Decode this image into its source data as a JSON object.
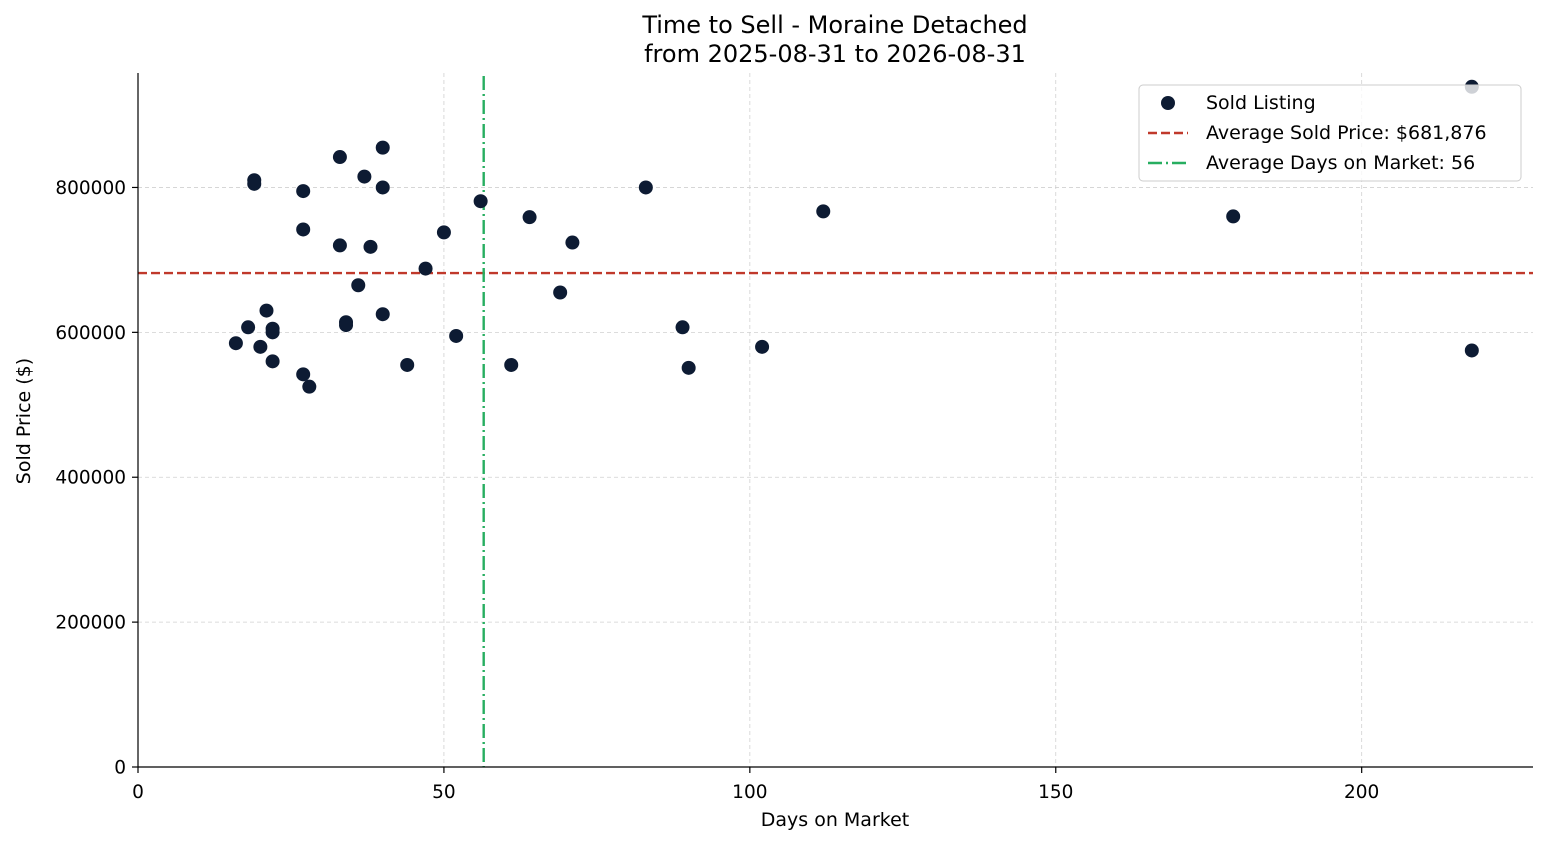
{
  "chart_data": {
    "type": "scatter",
    "title": "Time to Sell - Moraine Detached",
    "subtitle": "from 2025-08-31 to 2026-08-31",
    "xlabel": "Days on Market",
    "ylabel": "Sold Price ($)",
    "xlim": [
      0,
      228
    ],
    "ylim": [
      0,
      958000
    ],
    "x_ticks": [
      0,
      50,
      100,
      150,
      200
    ],
    "y_ticks": [
      0,
      200000,
      400000,
      600000,
      800000
    ],
    "x_tick_labels": [
      "0",
      "50",
      "100",
      "150",
      "200"
    ],
    "y_tick_labels": [
      "0",
      "200000",
      "400000",
      "600000",
      "800000"
    ],
    "grid": true,
    "legend_position": "top-right",
    "series": [
      {
        "name": "Sold Listing",
        "color": "#0d1b33",
        "points": [
          {
            "x": 16,
            "y": 585000
          },
          {
            "x": 18,
            "y": 607000
          },
          {
            "x": 19,
            "y": 810000
          },
          {
            "x": 19,
            "y": 805000
          },
          {
            "x": 20,
            "y": 580000
          },
          {
            "x": 21,
            "y": 630000
          },
          {
            "x": 22,
            "y": 605000
          },
          {
            "x": 22,
            "y": 600000
          },
          {
            "x": 22,
            "y": 560000
          },
          {
            "x": 27,
            "y": 795000
          },
          {
            "x": 27,
            "y": 742000
          },
          {
            "x": 27,
            "y": 542000
          },
          {
            "x": 28,
            "y": 525000
          },
          {
            "x": 33,
            "y": 842000
          },
          {
            "x": 33,
            "y": 720000
          },
          {
            "x": 34,
            "y": 614000
          },
          {
            "x": 34,
            "y": 610000
          },
          {
            "x": 36,
            "y": 665000
          },
          {
            "x": 37,
            "y": 815000
          },
          {
            "x": 38,
            "y": 718000
          },
          {
            "x": 40,
            "y": 855000
          },
          {
            "x": 40,
            "y": 800000
          },
          {
            "x": 40,
            "y": 625000
          },
          {
            "x": 44,
            "y": 555000
          },
          {
            "x": 47,
            "y": 688000
          },
          {
            "x": 50,
            "y": 738000
          },
          {
            "x": 52,
            "y": 595000
          },
          {
            "x": 56,
            "y": 781000
          },
          {
            "x": 61,
            "y": 555000
          },
          {
            "x": 64,
            "y": 759000
          },
          {
            "x": 69,
            "y": 655000
          },
          {
            "x": 71,
            "y": 724000
          },
          {
            "x": 83,
            "y": 800000
          },
          {
            "x": 89,
            "y": 607000
          },
          {
            "x": 90,
            "y": 551000
          },
          {
            "x": 102,
            "y": 580000
          },
          {
            "x": 112,
            "y": 767000
          },
          {
            "x": 179,
            "y": 760000
          },
          {
            "x": 218,
            "y": 575000
          },
          {
            "x": 218,
            "y": 939000
          }
        ]
      }
    ],
    "reference_lines": [
      {
        "orientation": "horizontal",
        "value": 681876,
        "label": "Average Sold Price: $681,876",
        "color": "#c0392b",
        "style": "dashed"
      },
      {
        "orientation": "vertical",
        "value": 56.5,
        "label": "Average Days on Market: 56",
        "color": "#27ae60",
        "style": "dashdot"
      }
    ]
  }
}
